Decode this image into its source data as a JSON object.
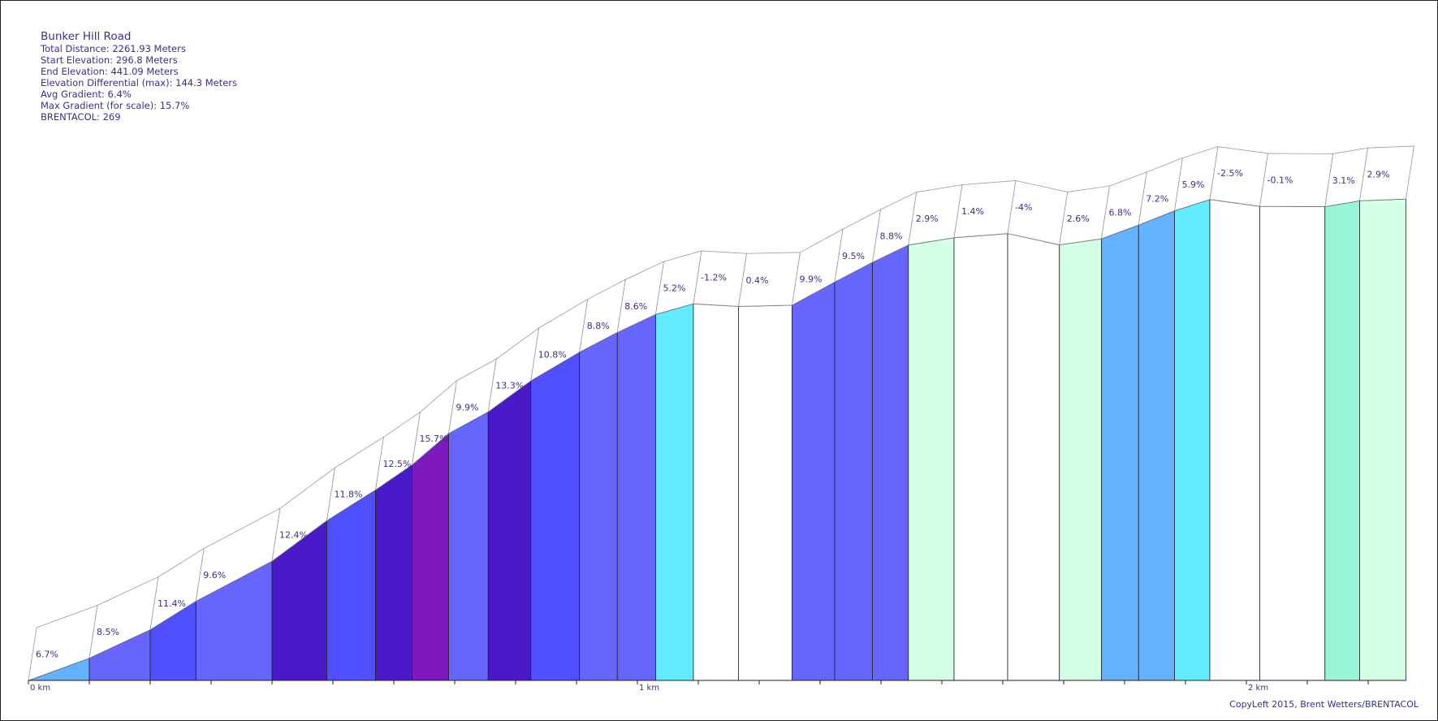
{
  "info": {
    "title": "Bunker Hill Road",
    "lines": [
      "Total Distance: 2261.93 Meters",
      "Start Elevation: 296.8 Meters",
      "End Elevation: 441.09 Meters",
      "Elevation Differential (max): 144.3 Meters",
      "Avg Gradient: 6.4%",
      "Max Gradient (for scale): 15.7%",
      "BRENTACOL: 269"
    ]
  },
  "copyright": "CopyLeft 2015, Brent Wetters/BRENTACOL",
  "chart_data": {
    "type": "area",
    "title": "Bunker Hill Road",
    "xunit": "km",
    "x_tick_labels": [
      "0 km",
      "1 km",
      "2 km"
    ],
    "x_range_km": [
      0,
      2.26193
    ],
    "y_range_m": [
      296.8,
      441.09
    ],
    "segments": [
      {
        "start_km": 0.0,
        "end_km": 0.1,
        "gradient": "6.7%",
        "color": "#62b2ff"
      },
      {
        "start_km": 0.1,
        "end_km": 0.2,
        "gradient": "8.5%",
        "color": "#6666ff"
      },
      {
        "start_km": 0.2,
        "end_km": 0.275,
        "gradient": "11.4%",
        "color": "#4f4ffe"
      },
      {
        "start_km": 0.275,
        "end_km": 0.4,
        "gradient": "9.6%",
        "color": "#6666ff"
      },
      {
        "start_km": 0.4,
        "end_km": 0.49,
        "gradient": "12.4%",
        "color": "#4a1ac8"
      },
      {
        "start_km": 0.49,
        "end_km": 0.57,
        "gradient": "11.8%",
        "color": "#4f4ffe"
      },
      {
        "start_km": 0.57,
        "end_km": 0.63,
        "gradient": "12.5%",
        "color": "#4a1ac8"
      },
      {
        "start_km": 0.63,
        "end_km": 0.69,
        "gradient": "15.7%",
        "color": "#7e19c0"
      },
      {
        "start_km": 0.69,
        "end_km": 0.755,
        "gradient": "9.9%",
        "color": "#6666ff"
      },
      {
        "start_km": 0.755,
        "end_km": 0.825,
        "gradient": "13.3%",
        "color": "#4a1ac8"
      },
      {
        "start_km": 0.825,
        "end_km": 0.905,
        "gradient": "10.8%",
        "color": "#4f4ffe"
      },
      {
        "start_km": 0.905,
        "end_km": 0.967,
        "gradient": "8.8%",
        "color": "#6666ff"
      },
      {
        "start_km": 0.967,
        "end_km": 1.03,
        "gradient": "8.6%",
        "color": "#6666ff"
      },
      {
        "start_km": 1.03,
        "end_km": 1.092,
        "gradient": "5.2%",
        "color": "#63ebff"
      },
      {
        "start_km": 1.092,
        "end_km": 1.166,
        "gradient": "-1.2%",
        "color": "#ffffff"
      },
      {
        "start_km": 1.166,
        "end_km": 1.254,
        "gradient": "0.4%",
        "color": "#ffffff"
      },
      {
        "start_km": 1.254,
        "end_km": 1.324,
        "gradient": "9.9%",
        "color": "#6666ff"
      },
      {
        "start_km": 1.324,
        "end_km": 1.386,
        "gradient": "9.5%",
        "color": "#6666ff"
      },
      {
        "start_km": 1.386,
        "end_km": 1.445,
        "gradient": "8.8%",
        "color": "#6666ff"
      },
      {
        "start_km": 1.445,
        "end_km": 1.52,
        "gradient": "2.9%",
        "color": "#d3ffe6"
      },
      {
        "start_km": 1.52,
        "end_km": 1.608,
        "gradient": "1.4%",
        "color": "#ffffff"
      },
      {
        "start_km": 1.608,
        "end_km": 1.693,
        "gradient": "-4%",
        "color": "#ffffff"
      },
      {
        "start_km": 1.693,
        "end_km": 1.762,
        "gradient": "2.6%",
        "color": "#d3ffe6"
      },
      {
        "start_km": 1.762,
        "end_km": 1.823,
        "gradient": "6.8%",
        "color": "#62b2ff"
      },
      {
        "start_km": 1.823,
        "end_km": 1.882,
        "gradient": "7.2%",
        "color": "#62b2ff"
      },
      {
        "start_km": 1.882,
        "end_km": 1.94,
        "gradient": "5.9%",
        "color": "#63ebff"
      },
      {
        "start_km": 1.94,
        "end_km": 2.022,
        "gradient": "-2.5%",
        "color": "#ffffff"
      },
      {
        "start_km": 2.022,
        "end_km": 2.129,
        "gradient": "-0.1%",
        "color": "#ffffff"
      },
      {
        "start_km": 2.129,
        "end_km": 2.186,
        "gradient": "3.1%",
        "color": "#97f4d7"
      },
      {
        "start_km": 2.186,
        "end_km": 2.262,
        "gradient": "2.9%",
        "color": "#d3ffe6"
      }
    ],
    "elevations_m": [
      296.8,
      303.5,
      312.0,
      320.55,
      332.55,
      344.7,
      353.9,
      361.4,
      370.8,
      377.3,
      386.6,
      395.2,
      401.1,
      406.5,
      409.7,
      408.9,
      409.25,
      416.2,
      422.1,
      427.3,
      429.5,
      430.75,
      427.35,
      429.15,
      433.3,
      437.55,
      440.95,
      438.9,
      438.8,
      440.55,
      441.09
    ]
  }
}
